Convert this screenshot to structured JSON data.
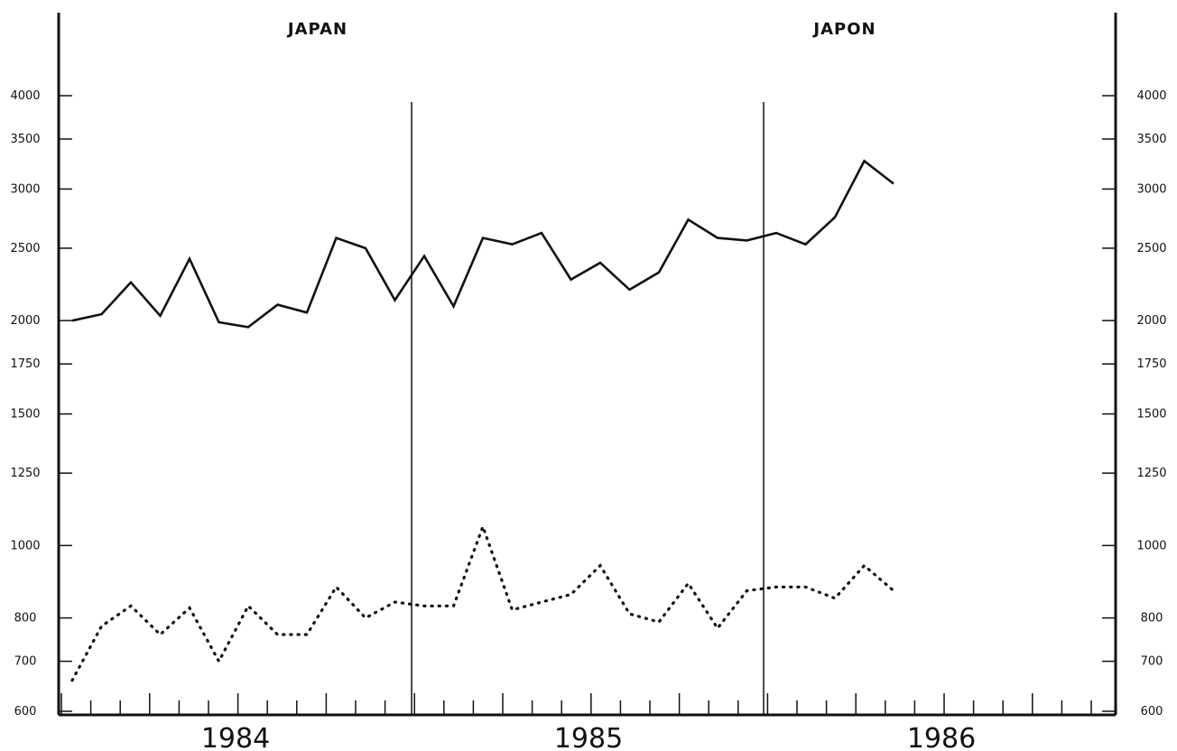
{
  "chart_data": {
    "type": "line",
    "title_left": "JAPAN",
    "title_right": "JAPON",
    "y_scale": "log",
    "ylim": [
      600,
      4000
    ],
    "y_ticks": [
      600,
      700,
      800,
      1000,
      1250,
      1500,
      1750,
      2000,
      2500,
      3000,
      3500,
      4000
    ],
    "y_tick_labels": [
      "600",
      "700",
      "800",
      "1000",
      "1250",
      "1500",
      "1750",
      "2000",
      "2500",
      "3000",
      "3500",
      "4000"
    ],
    "year_labels": [
      "1984",
      "1985",
      "1986"
    ],
    "period_dividers": [
      "1984 Q4",
      "1985 Q4"
    ],
    "x": [
      "1983-10",
      "1983-11",
      "1983-12",
      "1984-01",
      "1984-02",
      "1984-03",
      "1984-04",
      "1984-05",
      "1984-06",
      "1984-07",
      "1984-08",
      "1984-09",
      "1984-10",
      "1984-11",
      "1984-12",
      "1985-01",
      "1985-02",
      "1985-03",
      "1985-04",
      "1985-05",
      "1985-06",
      "1985-07",
      "1985-08",
      "1985-09",
      "1985-10",
      "1985-11",
      "1985-12",
      "1986-01",
      "1986-02",
      "1986-03",
      "1986-04"
    ],
    "series": [
      {
        "style": "solid",
        "values": [
          2000,
          2040,
          2250,
          2030,
          2420,
          1990,
          1960,
          2100,
          2050,
          2580,
          2500,
          2130,
          2440,
          2090,
          2580,
          2530,
          2620,
          2270,
          2390,
          2200,
          2320,
          2730,
          2580,
          2560,
          2620,
          2530,
          2750,
          3270,
          3050,
          null,
          null
        ]
      },
      {
        "style": "dotted",
        "values": [
          660,
          780,
          830,
          760,
          825,
          700,
          830,
          760,
          760,
          880,
          800,
          840,
          830,
          830,
          1060,
          820,
          840,
          860,
          940,
          810,
          790,
          890,
          775,
          870,
          880,
          880,
          850,
          940,
          870,
          null,
          null
        ]
      }
    ]
  }
}
